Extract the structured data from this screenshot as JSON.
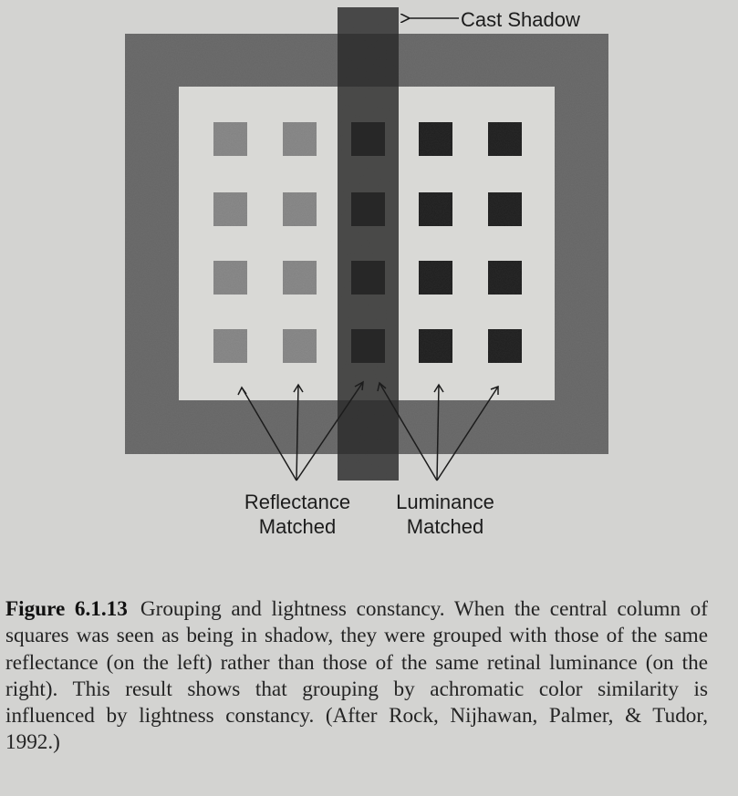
{
  "figure": {
    "labels": {
      "cast_shadow": "Cast Shadow",
      "reflectance_line1": "Reflectance",
      "reflectance_line2": "Matched",
      "luminance_line1": "Luminance",
      "luminance_line2": "Matched"
    },
    "colors": {
      "page": "#d3d3d1",
      "frame": "#6e6e6e",
      "inner_field": "#d9d9d6",
      "shadow_column": "#2c2c2c",
      "reflectance_squares": "#8c8c8c",
      "luminance_squares": "#262626",
      "shadowed_squares": "#1e1e1e"
    }
  },
  "caption": {
    "number": "Figure 6.1.13",
    "text": "Grouping and lightness constancy. When the central column of squares was seen as being in shadow, they were grouped with those of the same reflectance (on the left) rather than those of the same retinal luminance (on the right). This result shows that grouping by achromatic color similarity is influenced by lightness constancy. (After Rock, Nijhawan, Palmer, & Tudor, 1992.)"
  }
}
